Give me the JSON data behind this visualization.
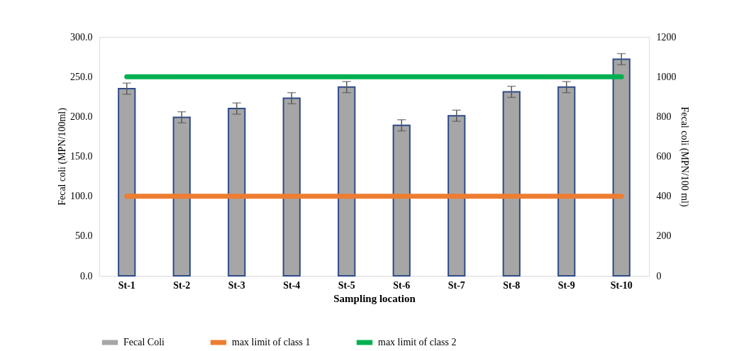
{
  "chart_data": {
    "type": "bar",
    "xlabel": "Sampling location",
    "ylabel": "Fecal coli (MPN/100ml)",
    "y2label": "Fecal coli (MPN/100 ml)",
    "categories": [
      "St-1",
      "St-2",
      "St-3",
      "St-4",
      "St-5",
      "St-6",
      "St-7",
      "St-8",
      "St-9",
      "St-10"
    ],
    "series": [
      {
        "name": "Fecal Coli",
        "color": "#a6a6a6",
        "values": [
          235,
          199,
          210,
          223,
          237,
          189,
          201,
          231,
          237,
          272
        ],
        "errors": [
          7,
          7,
          7,
          7,
          7,
          7,
          7,
          7,
          7,
          7
        ]
      },
      {
        "name": "max limit of class 1",
        "type": "line",
        "axis": "y2",
        "color": "#ed7d31",
        "values": [
          400,
          400,
          400,
          400,
          400,
          400,
          400,
          400,
          400,
          400
        ]
      },
      {
        "name": "max limit of class 2",
        "type": "line",
        "axis": "y2",
        "color": "#00b050",
        "values": [
          1000,
          1000,
          1000,
          1000,
          1000,
          1000,
          1000,
          1000,
          1000,
          1000
        ]
      }
    ],
    "ylim": [
      0,
      300
    ],
    "yticks": [
      {
        "value": 0,
        "label": "0.0"
      },
      {
        "value": 50,
        "label": "50.0"
      },
      {
        "value": 100,
        "label": "100.0"
      },
      {
        "value": 150,
        "label": "150.0"
      },
      {
        "value": 200,
        "label": "200.0"
      },
      {
        "value": 250,
        "label": "250.0"
      },
      {
        "value": 300,
        "label": "300.0"
      }
    ],
    "y2lim": [
      0,
      1200
    ],
    "y2ticks": [
      0,
      200,
      400,
      600,
      800,
      1000,
      1200
    ],
    "legend": "bottom",
    "grid": false
  }
}
